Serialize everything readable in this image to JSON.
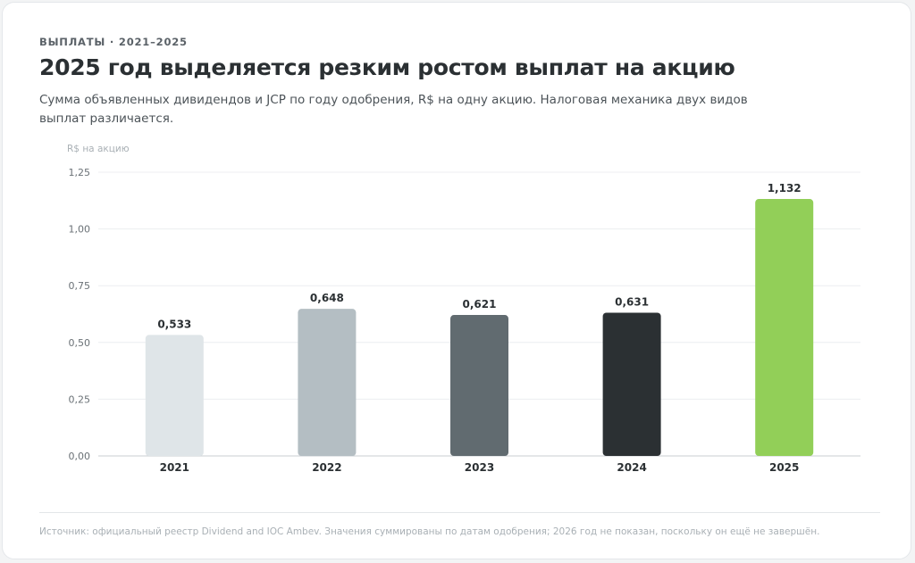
{
  "header": {
    "eyebrow": "ВЫПЛАТЫ · 2021–2025",
    "title": "2025 год выделяется резким ростом выплат на акцию",
    "subtitle": "Сумма объявленных дивидендов и JCP по году одобрения, R$ на одну акцию. Налоговая механика двух видов выплат различается."
  },
  "footer": {
    "source": "Источник: официальный реестр Dividend and IOC Ambev. Значения суммированы по датам одобрения; 2026 год не показан, поскольку он ещё не завершён."
  },
  "chart_data": {
    "type": "bar",
    "ylabel": "R$ на акцию",
    "categories": [
      "2021",
      "2022",
      "2023",
      "2024",
      "2025"
    ],
    "values": [
      0.533,
      0.648,
      0.621,
      0.631,
      1.132
    ],
    "value_labels": [
      "0,533",
      "0,648",
      "0,621",
      "0,631",
      "1,132"
    ],
    "bar_colors": [
      "#dfe5e8",
      "#b4bec3",
      "#616b70",
      "#2b3033",
      "#92cf58"
    ],
    "ylim": [
      0,
      1.25
    ],
    "yticks": [
      0,
      0.25,
      0.5,
      0.75,
      1.0,
      1.25
    ],
    "ytick_labels": [
      "0,00",
      "0,25",
      "0,50",
      "0,75",
      "1,00",
      "1,25"
    ],
    "grid": true
  }
}
